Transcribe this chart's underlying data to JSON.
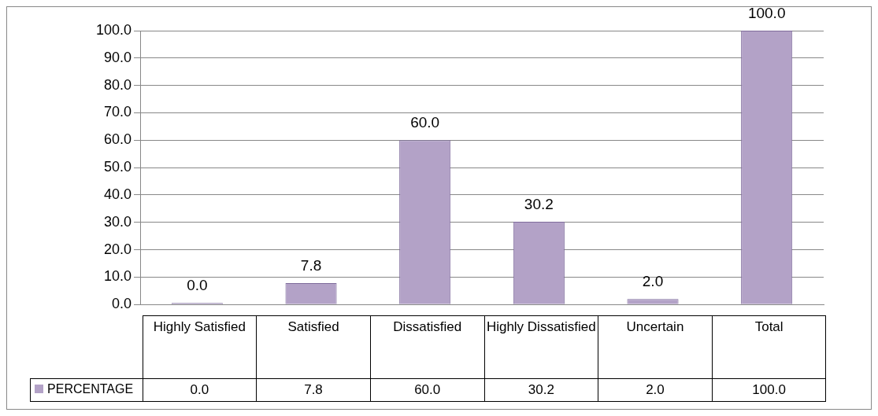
{
  "chart_data": {
    "type": "bar",
    "categories": [
      "Highly Satisfied",
      "Satisfied",
      "Dissatisfied",
      "Highly Dissatisfied",
      "Uncertain",
      "Total"
    ],
    "series": [
      {
        "name": "PERCENTAGE",
        "color": "#b3a2c7",
        "values": [
          0.0,
          7.8,
          60.0,
          30.2,
          2.0,
          100.0
        ],
        "value_labels": [
          "0.0",
          "7.8",
          "60.0",
          "30.2",
          "2.0",
          "100.0"
        ]
      }
    ],
    "ylim": [
      0,
      100
    ],
    "yticks": [
      {
        "value": 0,
        "label": "0.0"
      },
      {
        "value": 10,
        "label": "10.0"
      },
      {
        "value": 20,
        "label": "20.0"
      },
      {
        "value": 30,
        "label": "30.0"
      },
      {
        "value": 40,
        "label": "40.0"
      },
      {
        "value": 50,
        "label": "50.0"
      },
      {
        "value": 60,
        "label": "60.0"
      },
      {
        "value": 70,
        "label": "70.0"
      },
      {
        "value": 80,
        "label": "80.0"
      },
      {
        "value": 90,
        "label": "90.0"
      },
      {
        "value": 100,
        "label": "100.0"
      }
    ],
    "grid": "y",
    "legend": "bottom"
  }
}
